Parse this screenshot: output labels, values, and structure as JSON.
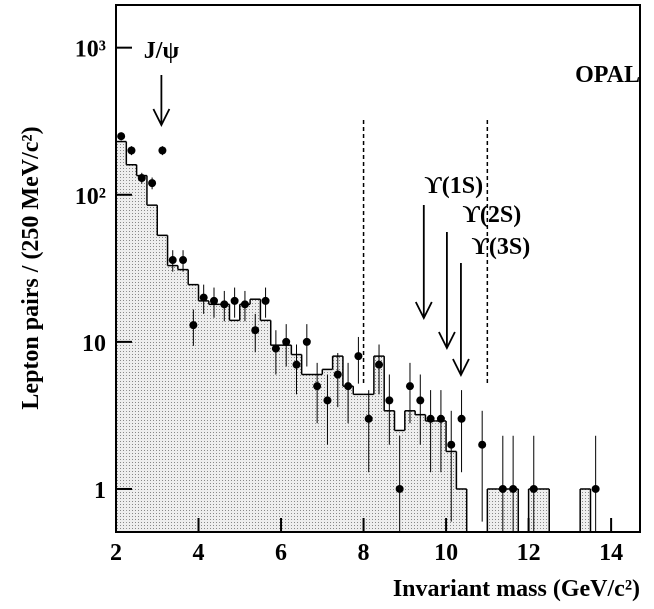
{
  "chart_data": {
    "type": "histogram",
    "experiment": "OPAL",
    "x_label": "Invariant mass (GeV/c²)",
    "y_label": "Lepton pairs / (250 MeV/c²)",
    "log_y": true,
    "xlim": [
      2,
      14.7
    ],
    "ylim": [
      0.51,
      1950
    ],
    "xticks": [
      2,
      4,
      6,
      8,
      10,
      12,
      14
    ],
    "yticks": [
      1,
      10,
      {
        "value": 100,
        "label": "10²"
      },
      {
        "value": 1000,
        "label": "10³"
      }
    ],
    "bins": [
      2,
      2.25,
      2.5,
      2.75,
      3,
      3.25,
      3.5,
      3.75,
      4,
      4.25,
      4.5,
      4.75,
      5,
      5.25,
      5.5,
      5.75,
      6,
      6.25,
      6.5,
      6.75,
      7,
      7.25,
      7.5,
      7.75,
      8,
      8.25,
      8.5,
      8.75,
      9,
      9.25,
      9.5,
      9.75,
      10,
      10.25,
      10.5,
      10.75,
      11,
      11.25,
      11.5,
      11.75,
      12,
      12.25,
      12.5,
      12.75,
      13,
      13.25,
      13.5,
      13.75,
      14
    ],
    "counts": [
      230,
      160,
      135,
      85,
      53,
      33,
      31,
      24.5,
      19,
      18,
      18,
      14,
      18,
      19.5,
      14,
      9.5,
      9.5,
      8.2,
      6,
      6,
      6.5,
      8,
      5,
      4.4,
      4.4,
      8,
      3.4,
      2.5,
      3.4,
      3.2,
      2.9,
      2.9,
      1.8,
      1,
      0,
      0,
      1,
      1,
      1,
      0,
      1,
      1,
      0,
      0,
      0,
      1,
      0,
      0
    ],
    "points": {
      "x": [
        2.125,
        2.375,
        2.625,
        2.875,
        3.125,
        3.375,
        3.625,
        3.875,
        4.125,
        4.375,
        4.625,
        4.875,
        5.125,
        5.375,
        5.625,
        5.875,
        6.125,
        6.375,
        6.625,
        6.875,
        7.125,
        7.375,
        7.625,
        7.875,
        8.125,
        8.375,
        8.625,
        8.875,
        9.125,
        9.375,
        9.625,
        9.875,
        10.125,
        10.375,
        10.875,
        11.375,
        11.625,
        12.125,
        13.625
      ],
      "values": [
        250,
        200,
        130,
        120,
        200,
        36,
        36,
        13,
        20,
        19,
        18,
        19,
        18,
        12,
        19,
        9,
        10,
        7,
        10,
        5,
        4,
        6,
        5,
        8,
        3,
        7,
        4,
        1,
        5,
        4,
        3,
        3,
        2,
        3,
        2,
        1,
        1,
        1,
        1
      ],
      "errors": [
        16,
        14,
        11,
        11,
        14,
        6,
        6,
        3.6,
        4.5,
        4.4,
        4.2,
        4.4,
        4.2,
        3.5,
        4.4,
        3,
        3.2,
        2.6,
        3.2,
        2.2,
        2,
        2.4,
        2.2,
        2.8,
        1.7,
        2.6,
        2,
        1.3,
        2.2,
        2,
        1.7,
        1.7,
        1.4,
        1.7,
        1.4,
        1.3,
        1.3,
        1.3,
        1.3
      ]
    },
    "vlines": [
      8,
      11
    ],
    "annotations": [
      {
        "text": "J/ψ",
        "x": 3.1
      },
      {
        "text": "ϒ(1S)",
        "x": 9.46
      },
      {
        "text": "ϒ(2S)",
        "x": 10.02
      },
      {
        "text": "ϒ(3S)",
        "x": 10.36
      }
    ]
  }
}
